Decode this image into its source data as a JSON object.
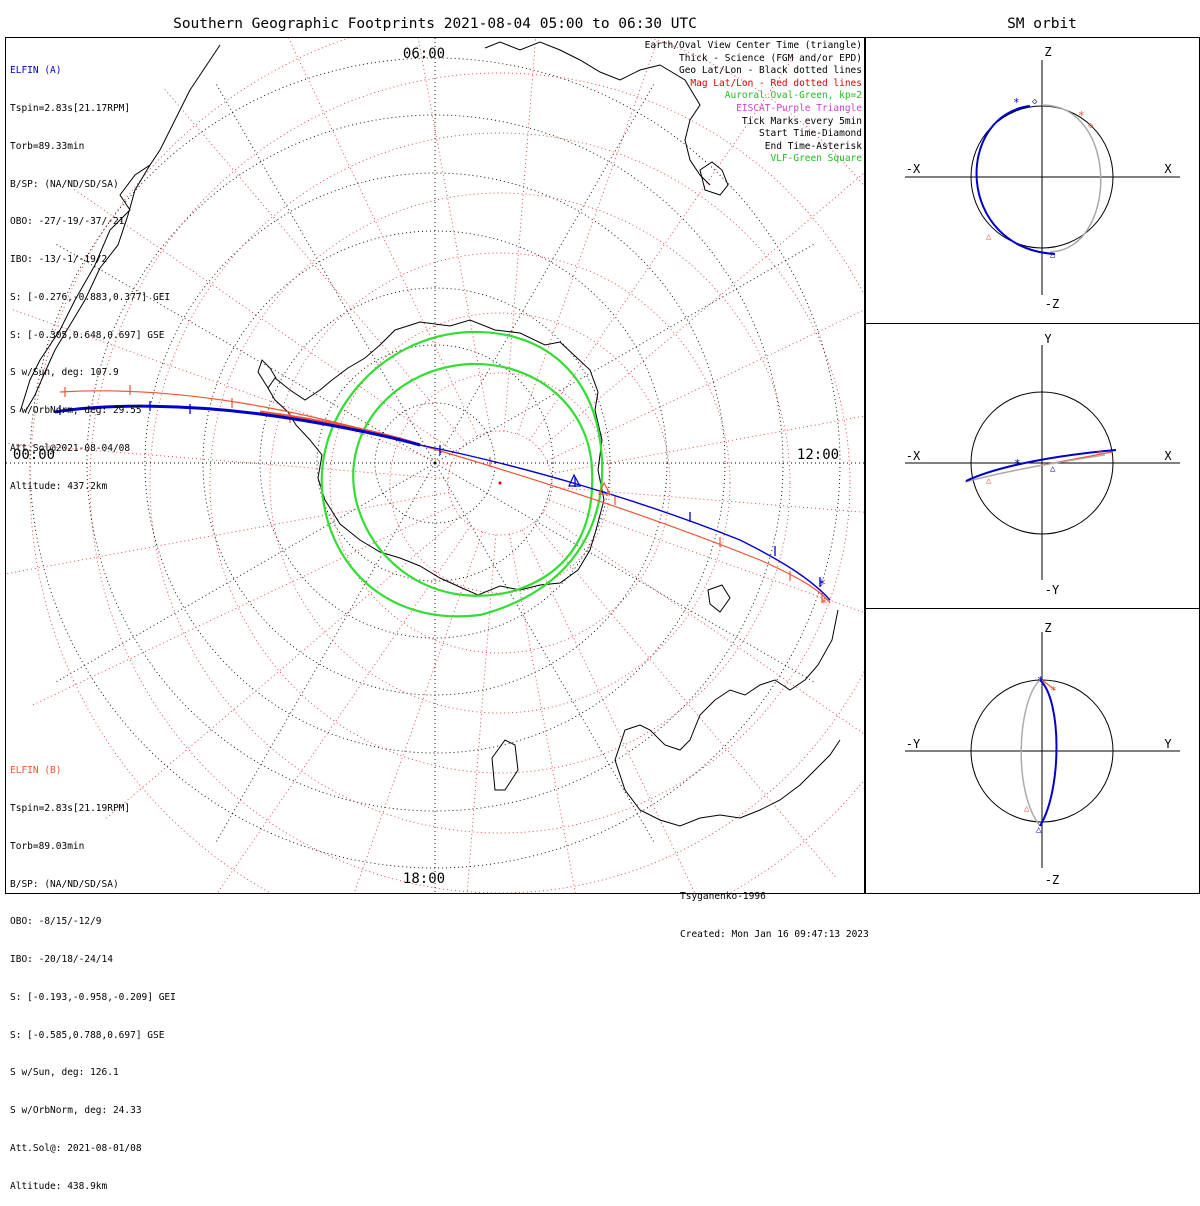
{
  "title": "Southern Geographic Footprints 2021-08-04 05:00 to 06:30 UTC",
  "orbit_title": "SM orbit",
  "clock_labels": {
    "top": "06:00",
    "left": "00:00",
    "right": "12:00",
    "bottom": "18:00"
  },
  "elfin_a": {
    "lines": [
      "ELFIN (A)",
      "Tspin=2.83s[21.17RPM]",
      "Torb=89.33min",
      "B/SP: (NA/ND/SD/SA)",
      "OBO: -27/-19/-37/-21",
      "IBO: -13/-1/-19/2",
      "S: [-0.276,-0.883,0.377] GEI",
      "S: [-0.305,0.648,0.697] GSE",
      "S w/Sun, deg: 107.9",
      "S w/OrbNorm, deg: 29.55",
      "Att.Sol@2021-08-04/08",
      "Altitude: 437.2km"
    ],
    "color": "#0000cc"
  },
  "elfin_b": {
    "lines": [
      "ELFIN (B)",
      "Tspin=2.83s[21.19RPM]",
      "Torb=89.03min",
      "B/SP: (NA/ND/SD/SA)",
      "OBO: -8/15/-12/9",
      "IBO: -20/18/-24/14",
      "S: [-0.193,-0.958,-0.209] GEI",
      "S: [-0.585,0.788,0.697] GSE",
      "S w/Sun, deg: 126.1",
      "S w/OrbNorm, deg: 24.33",
      "Att.Sol@: 2021-08-01/08",
      "Altitude: 438.9km"
    ],
    "color": "#ee5533"
  },
  "legend": [
    {
      "text": "Earth/Oval View Center Time (triangle)",
      "color": "#000000"
    },
    {
      "text": "Thick - Science (FGM and/or EPD)",
      "color": "#000000"
    },
    {
      "text": "Geo Lat/Lon - Black dotted lines",
      "color": "#000000"
    },
    {
      "text": "Mag Lat/Lon - Red dotted lines",
      "color": "#dd0000"
    },
    {
      "text": "Auroral Oval-Green, kp=2",
      "color": "#22bb22"
    },
    {
      "text": "EISCAT-Purple Triangle",
      "color": "#cc44cc"
    },
    {
      "text": "Tick Marks every 5min",
      "color": "#000000"
    },
    {
      "text": "Start Time-Diamond",
      "color": "#000000"
    },
    {
      "text": "End Time-Asterisk",
      "color": "#000000"
    },
    {
      "text": "VLF-Green Square",
      "color": "#22bb22"
    }
  ],
  "credit": {
    "author": "Tsyganenko-1996",
    "created": "Created: Mon Jan 16 09:47:13 2023"
  },
  "orbit_panels": [
    {
      "top": "Z",
      "bottom": "-Z",
      "left": "-X",
      "right": "X"
    },
    {
      "top": "Y",
      "bottom": "-Y",
      "left": "-X",
      "right": "X"
    },
    {
      "top": "Z",
      "bottom": "-Z",
      "left": "-Y",
      "right": "Y"
    }
  ],
  "chart_data": {
    "type": "map",
    "projection": "south polar stereographic",
    "center_time": "2021-08-04 05:00 to 06:30 UTC",
    "series": [
      {
        "name": "ELFIN (A)",
        "color": "#0000cc"
      },
      {
        "name": "ELFIN (B)",
        "color": "#ee5533"
      }
    ],
    "auroral_oval_kp": 2
  }
}
